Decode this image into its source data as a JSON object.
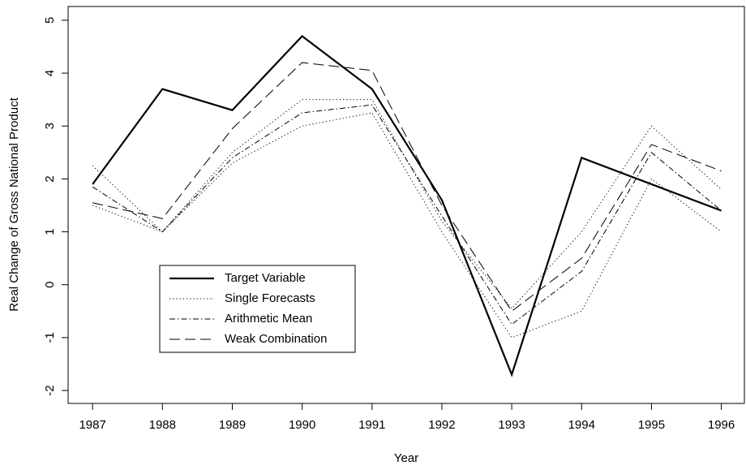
{
  "chart_data": {
    "type": "line",
    "x_label": "Year",
    "y_label": "Real Change of Gross National Product",
    "x": [
      1987,
      1988,
      1989,
      1990,
      1991,
      1992,
      1993,
      1994,
      1995,
      1996
    ],
    "xlim": [
      1986.65,
      1996.33
    ],
    "xticks": [
      1987,
      1988,
      1989,
      1990,
      1991,
      1992,
      1993,
      1994,
      1995,
      1996
    ],
    "ylim": [
      -2.245,
      5.26
    ],
    "yticks": [
      -2,
      -1,
      0,
      1,
      2,
      3,
      4,
      5
    ],
    "legend": "center left",
    "series": [
      {
        "name": "Target Variable",
        "color": "#000000",
        "dash": "solid",
        "width": 2.2,
        "values": [
          1.9,
          3.7,
          3.3,
          4.7,
          3.7,
          1.6,
          -1.7,
          2.4,
          1.9,
          1.4
        ]
      },
      {
        "name": "Single Forecasts",
        "color": "#000000",
        "dash": "dotted",
        "width": 1,
        "values": [
          2.25,
          1.0,
          2.5,
          3.5,
          3.5,
          1.2,
          -0.45,
          1.0,
          3.0,
          1.8
        ]
      },
      {
        "color": "#000000",
        "dash": "dotted",
        "width": 1,
        "values": [
          1.5,
          1.0,
          2.3,
          3.0,
          3.25,
          1.0,
          -1.0,
          -0.5,
          2.0,
          1.0
        ]
      },
      {
        "name": "Arithmetic Mean",
        "color": "#000000",
        "dash": "dotdash",
        "width": 1,
        "values": [
          1.85,
          1.0,
          2.4,
          3.25,
          3.4,
          1.3,
          -0.75,
          0.25,
          2.5,
          1.4
        ]
      },
      {
        "name": "Weak Combination",
        "color": "#000000",
        "dash": "dashed",
        "width": 1,
        "values": [
          1.55,
          1.25,
          2.95,
          4.2,
          4.05,
          1.5,
          -0.5,
          0.5,
          2.65,
          2.15
        ]
      }
    ]
  }
}
